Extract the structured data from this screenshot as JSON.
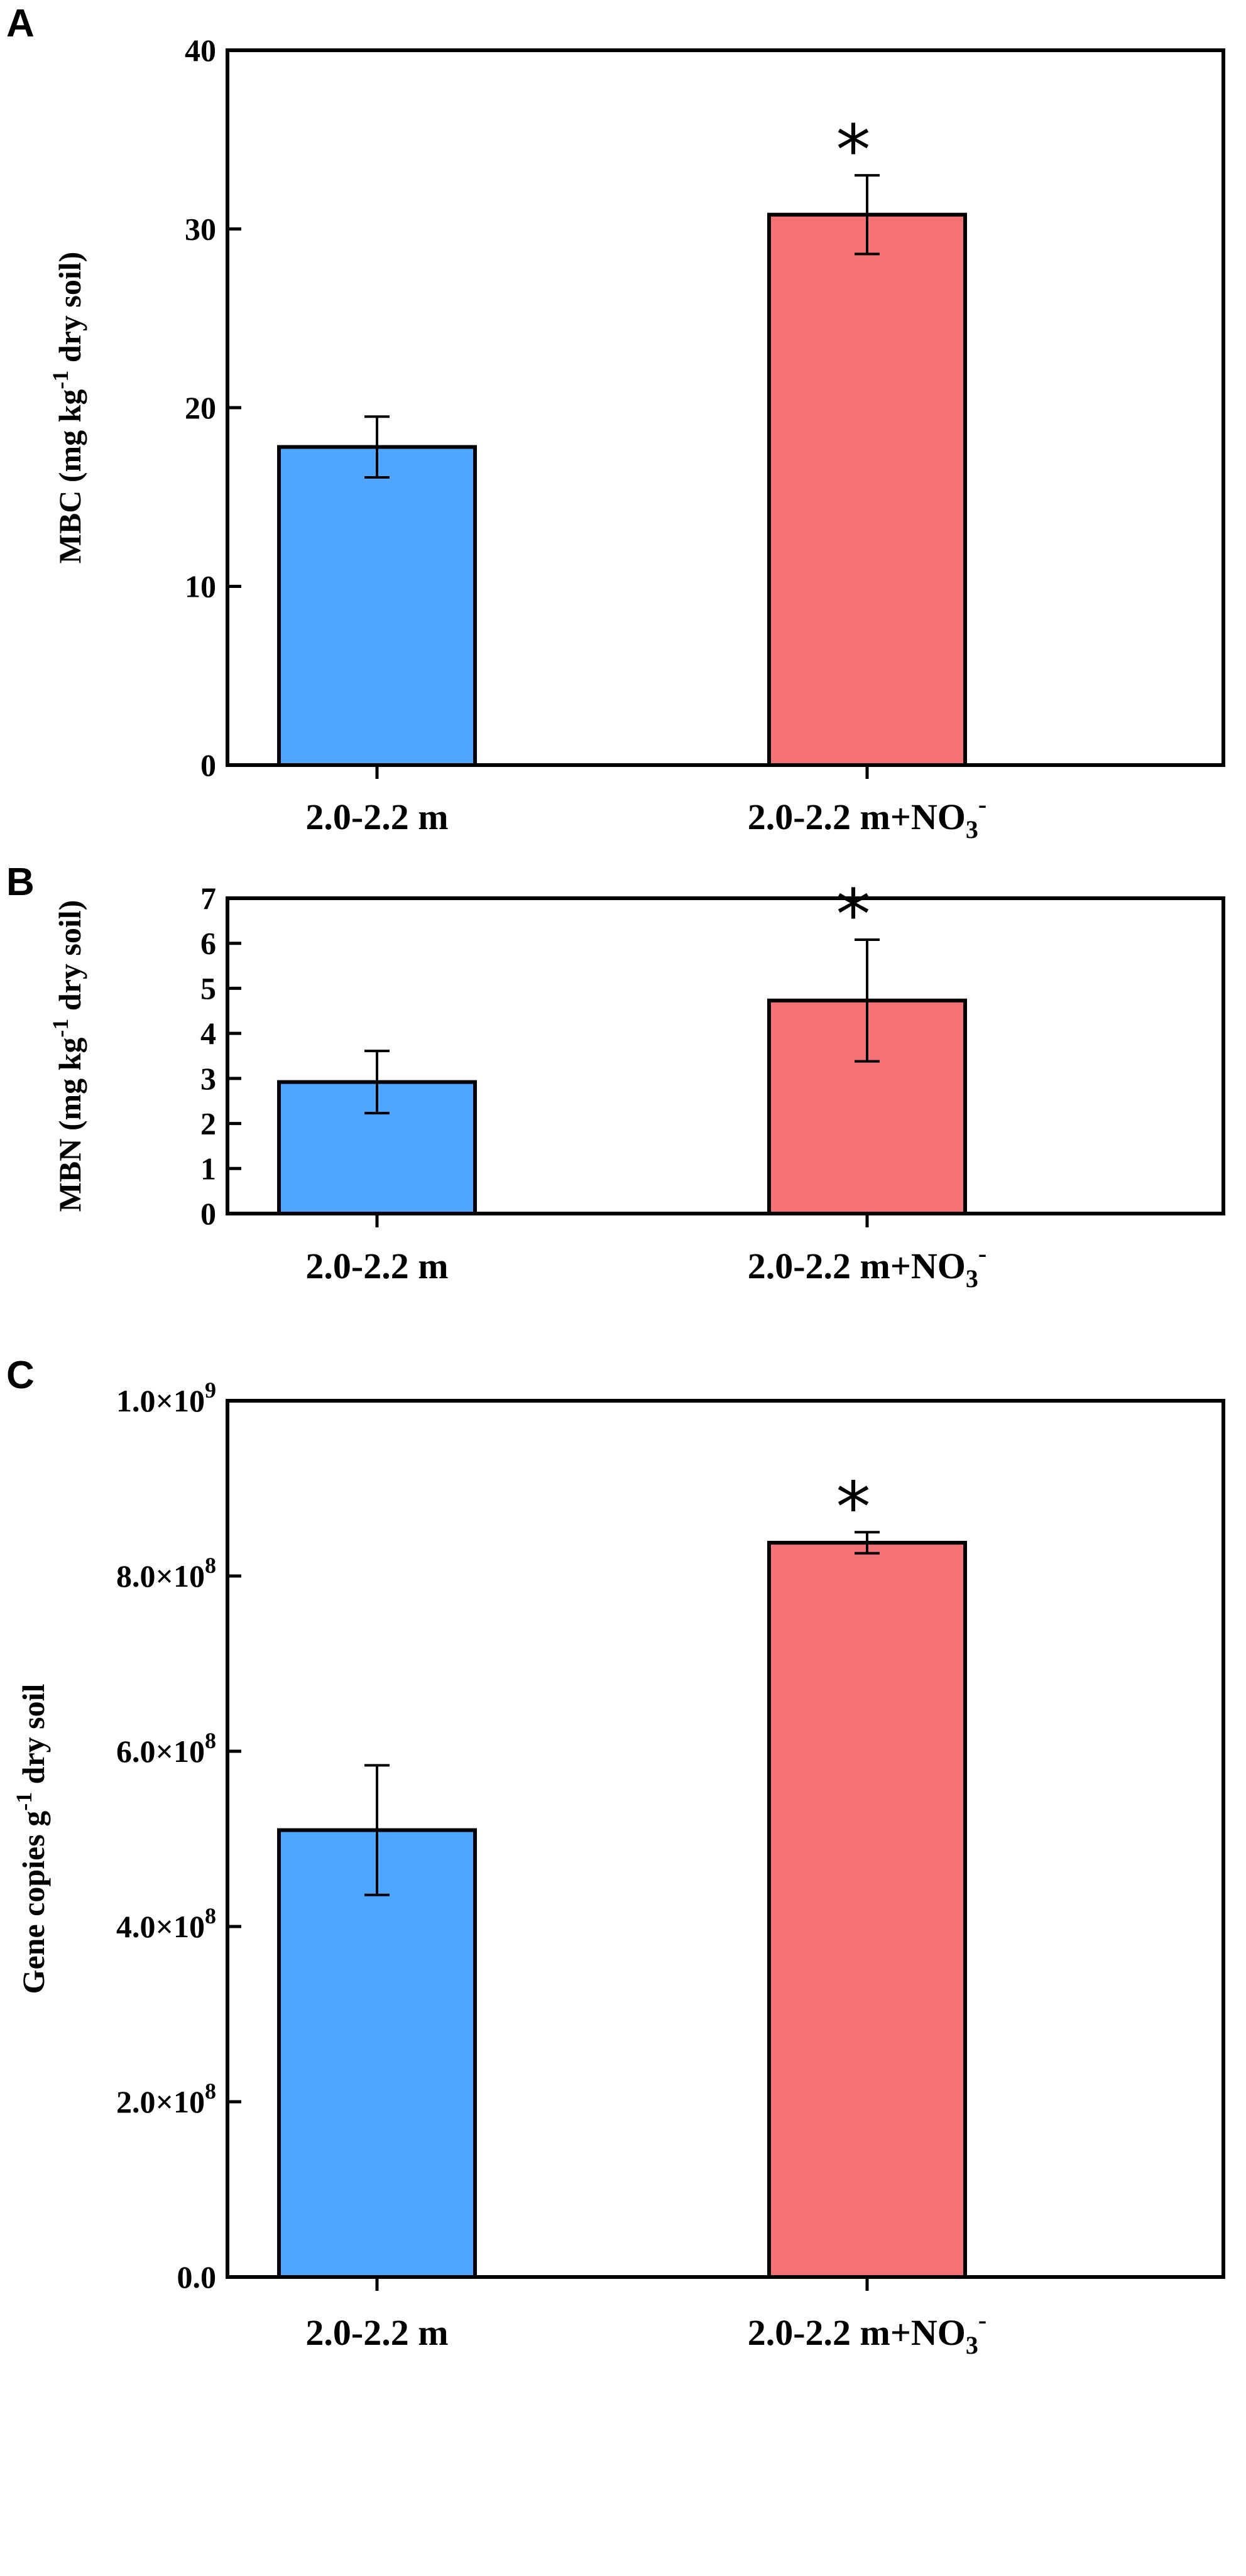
{
  "chart_data": [
    {
      "type": "bar",
      "panel": "A",
      "title": "",
      "categories": [
        "2.0-2.2 m",
        "2.0-2.2 m+NO3-"
      ],
      "category_labels": [
        {
          "base": "2.0-2.2 m",
          "sub": "",
          "sup": ""
        },
        {
          "base": "2.0-2.2 m+NO",
          "sub": "3",
          "sup": "-"
        }
      ],
      "values": [
        17.8,
        30.8
      ],
      "errors": [
        1.7,
        2.2
      ],
      "significance": [
        "",
        "*"
      ],
      "colors": [
        "#4da6ff",
        "#f47174"
      ],
      "ylabel": {
        "base": "MBC (mg kg",
        "sup": "-1",
        "tail": " dry soil)"
      },
      "xlabel": "",
      "ylim": [
        0,
        40
      ],
      "yticks": [
        0,
        10,
        20,
        30,
        40
      ],
      "ytick_labels": [
        {
          "base": "0",
          "sup": ""
        },
        {
          "base": "10",
          "sup": ""
        },
        {
          "base": "20",
          "sup": ""
        },
        {
          "base": "30",
          "sup": ""
        },
        {
          "base": "40",
          "sup": ""
        }
      ],
      "grid": false,
      "legend": "none"
    },
    {
      "type": "bar",
      "panel": "B",
      "title": "",
      "categories": [
        "2.0-2.2 m",
        "2.0-2.2 m+NO3-"
      ],
      "category_labels": [
        {
          "base": "2.0-2.2 m",
          "sub": "",
          "sup": ""
        },
        {
          "base": "2.0-2.2 m+NO",
          "sub": "3",
          "sup": "-"
        }
      ],
      "values": [
        2.92,
        4.73
      ],
      "errors": [
        0.69,
        1.35
      ],
      "significance": [
        "",
        "*"
      ],
      "colors": [
        "#4da6ff",
        "#f47174"
      ],
      "ylabel": {
        "base": "MBN (mg kg",
        "sup": "-1",
        "tail": " dry soil)"
      },
      "xlabel": "",
      "ylim": [
        0,
        7
      ],
      "yticks": [
        0,
        1,
        2,
        3,
        4,
        5,
        6,
        7
      ],
      "ytick_labels": [
        {
          "base": "0",
          "sup": ""
        },
        {
          "base": "1",
          "sup": ""
        },
        {
          "base": "2",
          "sup": ""
        },
        {
          "base": "3",
          "sup": ""
        },
        {
          "base": "4",
          "sup": ""
        },
        {
          "base": "5",
          "sup": ""
        },
        {
          "base": "6",
          "sup": ""
        },
        {
          "base": "7",
          "sup": ""
        }
      ],
      "grid": false,
      "legend": "none"
    },
    {
      "type": "bar",
      "panel": "C",
      "title": "",
      "categories": [
        "2.0-2.2 m",
        "2.0-2.2 m+NO3-"
      ],
      "category_labels": [
        {
          "base": "2.0-2.2 m",
          "sub": "",
          "sup": ""
        },
        {
          "base": "2.0-2.2 m+NO",
          "sub": "3",
          "sup": "-"
        }
      ],
      "values": [
        510000000,
        838000000
      ],
      "errors": [
        74000000,
        12000000
      ],
      "significance": [
        "",
        "*"
      ],
      "colors": [
        "#4da6ff",
        "#f47174"
      ],
      "ylabel": {
        "base": "Gene copies g",
        "sup": "-1",
        "tail": " dry soil"
      },
      "xlabel": "",
      "ylim": [
        0,
        1000000000
      ],
      "yticks": [
        0,
        200000000,
        400000000,
        600000000,
        800000000,
        1000000000
      ],
      "ytick_labels": [
        {
          "base": "0.0",
          "sup": ""
        },
        {
          "base": "2.0×10",
          "sup": "8"
        },
        {
          "base": "4.0×10",
          "sup": "8"
        },
        {
          "base": "6.0×10",
          "sup": "8"
        },
        {
          "base": "8.0×10",
          "sup": "8"
        },
        {
          "base": "1.0×10",
          "sup": "9"
        }
      ],
      "grid": false,
      "legend": "none"
    }
  ]
}
